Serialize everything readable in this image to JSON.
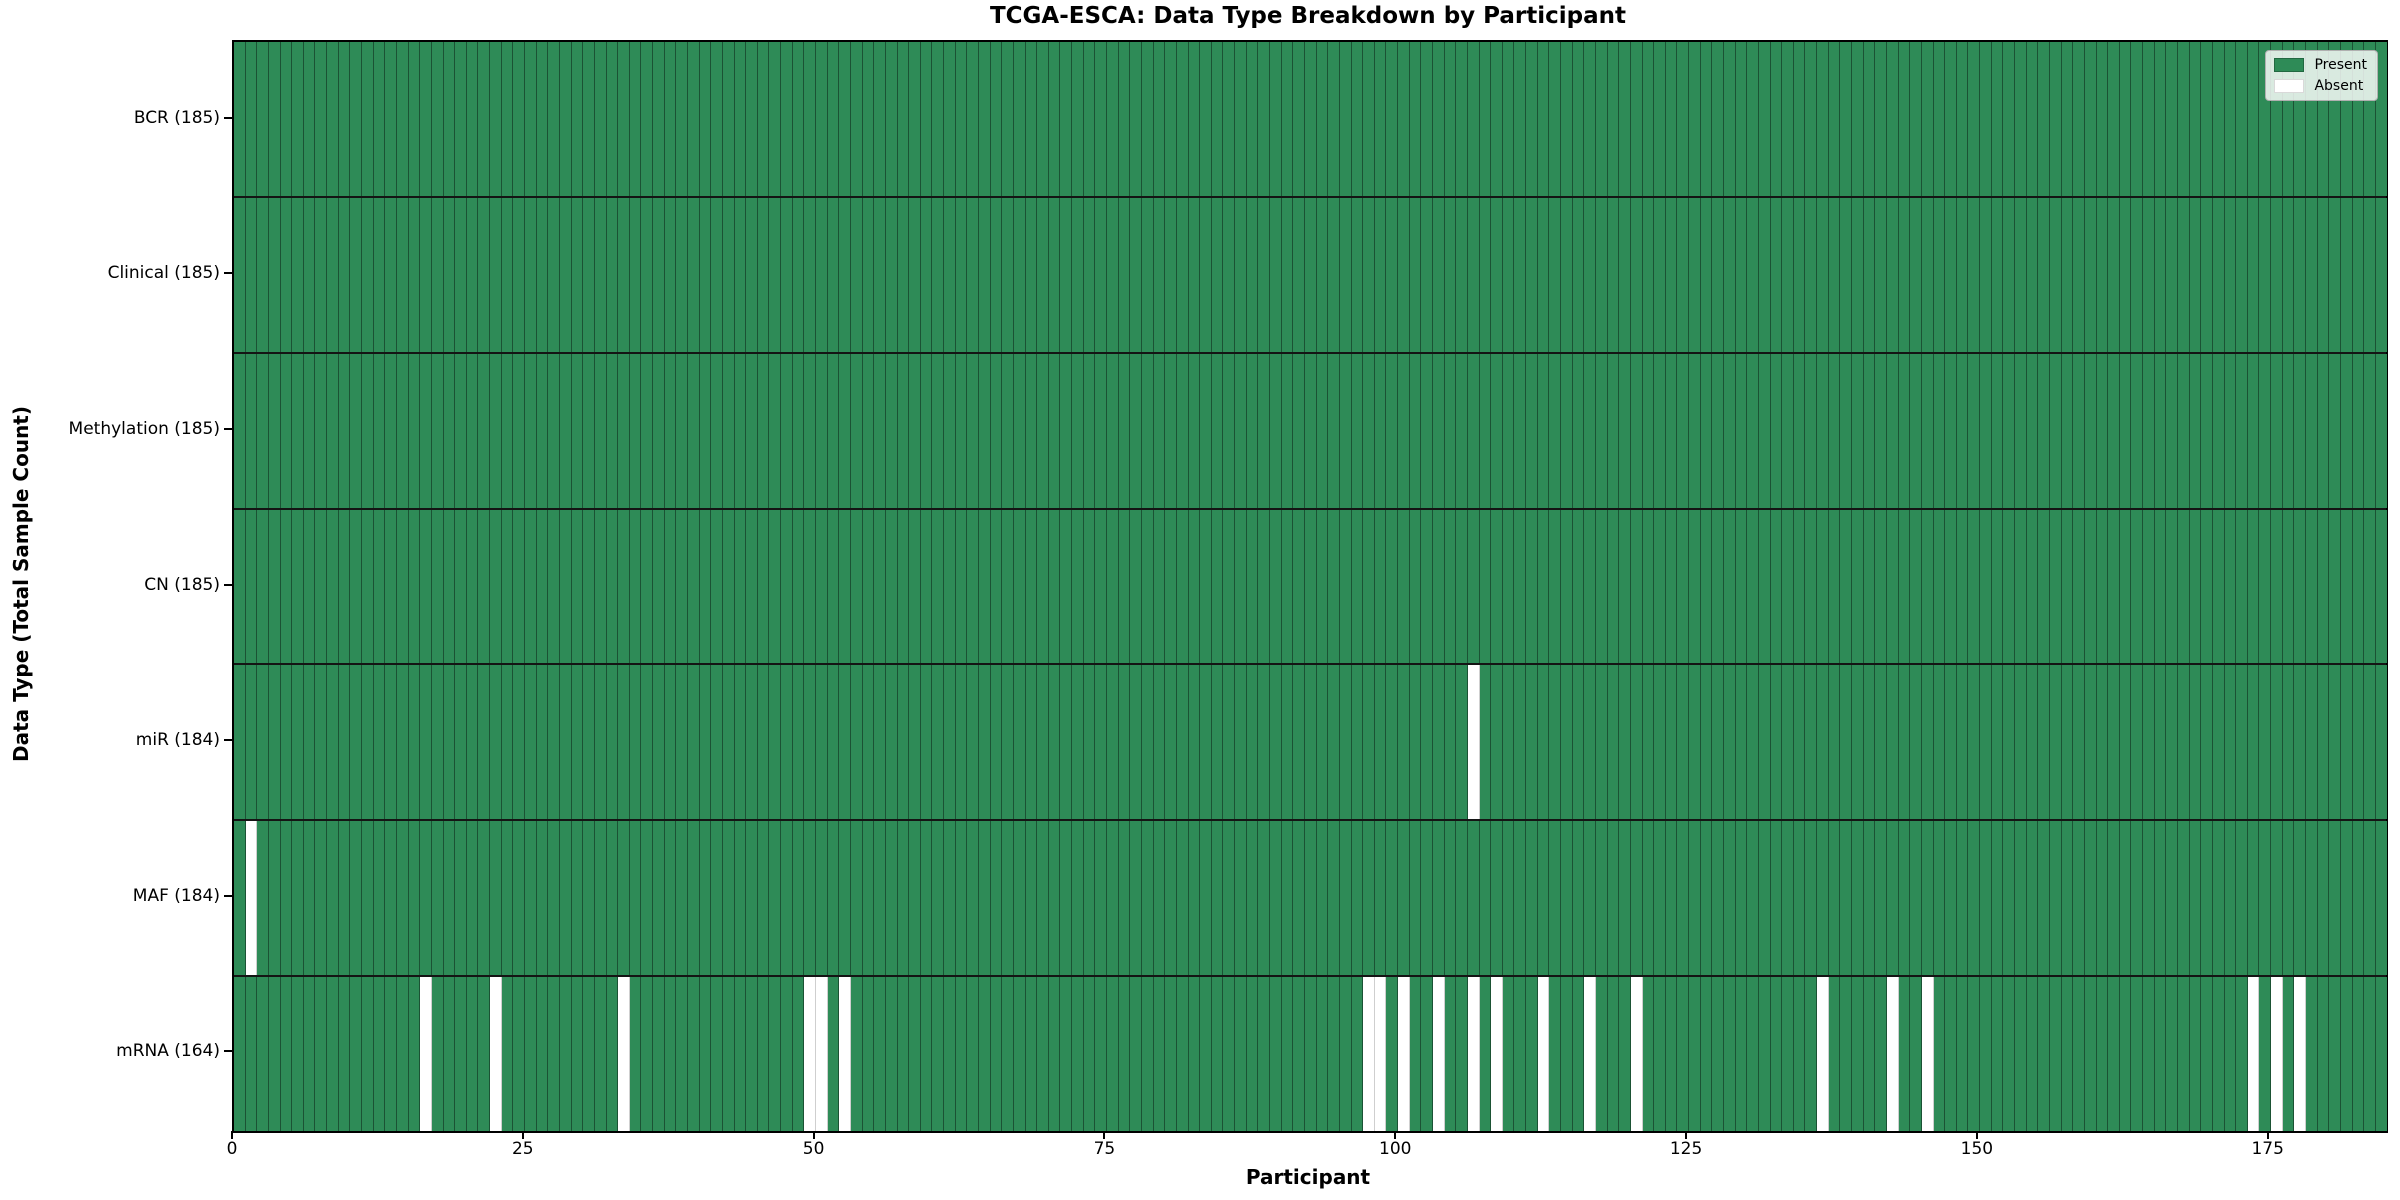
{
  "chart_data": {
    "type": "heatmap",
    "title": "TCGA-ESCA: Data Type Breakdown by Participant",
    "xlabel": "Participant",
    "ylabel": "Data Type (Total Sample Count)",
    "legend": [
      "Present",
      "Absent"
    ],
    "legend_position": "upper right",
    "n_participants": 185,
    "x_range": [
      0,
      185
    ],
    "x_ticks": [
      0,
      25,
      50,
      75,
      100,
      125,
      150,
      175
    ],
    "colors": {
      "present": "#2e8b57",
      "absent": "#ffffff"
    },
    "rows": [
      {
        "name": "BCR",
        "label": "BCR (185)",
        "total": 185,
        "absent_participants": []
      },
      {
        "name": "Clinical",
        "label": "Clinical (185)",
        "total": 185,
        "absent_participants": []
      },
      {
        "name": "Methylation",
        "label": "Methylation (185)",
        "total": 185,
        "absent_participants": []
      },
      {
        "name": "CN",
        "label": "CN (185)",
        "total": 185,
        "absent_participants": []
      },
      {
        "name": "miR",
        "label": "miR (184)",
        "total": 184,
        "absent_participants": [
          106
        ]
      },
      {
        "name": "MAF",
        "label": "MAF (184)",
        "total": 184,
        "absent_participants": [
          1
        ]
      },
      {
        "name": "mRNA",
        "label": "mRNA (164)",
        "total": 164,
        "absent_participants": [
          16,
          22,
          33,
          49,
          50,
          52,
          97,
          98,
          100,
          103,
          106,
          108,
          112,
          116,
          120,
          136,
          142,
          145,
          173,
          175,
          177
        ]
      }
    ]
  }
}
